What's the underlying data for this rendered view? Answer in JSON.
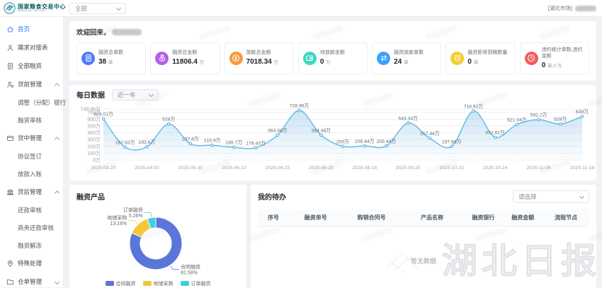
{
  "header": {
    "brand": {
      "title": "国家粮食交易中心",
      "subtitle": "National Grain Trade Center"
    },
    "market_filter": {
      "value": "全部"
    },
    "user": {
      "market_tag": "[湖北市场]"
    }
  },
  "sidebar": {
    "items": [
      {
        "id": "home",
        "label": "首页",
        "icon": "home-icon",
        "active": true
      },
      {
        "id": "demand-matching",
        "label": "需求对接表",
        "icon": "user-icon"
      },
      {
        "id": "all-financing",
        "label": "全部融资",
        "icon": "document-icon"
      },
      {
        "id": "pre-loan",
        "label": "贷前管理",
        "icon": "user-gear-icon",
        "expanded": true,
        "children": [
          "调整（分配）银行",
          "融资审核"
        ]
      },
      {
        "id": "mid-loan",
        "label": "贷中管理",
        "icon": "card-icon",
        "expanded": true,
        "children": [
          "协议签订",
          "放款入账"
        ]
      },
      {
        "id": "post-loan",
        "label": "贷后管理",
        "icon": "bank-icon",
        "expanded": true,
        "children": [
          "还款审核",
          "商务还款审核",
          "融资解冻"
        ]
      },
      {
        "id": "special",
        "label": "特殊处理",
        "icon": "pin-icon"
      },
      {
        "id": "warehouse",
        "label": "仓单管理",
        "icon": "folder-icon",
        "expanded": false,
        "children": []
      }
    ]
  },
  "main": {
    "welcome_prefix": "欢迎回来，",
    "stat_cards": [
      {
        "title": "融资总单数",
        "value": "38",
        "unit": "单",
        "icon": "document-icon",
        "color": "#4f79f6",
        "bg": "#e9efff"
      },
      {
        "title": "融资总金额",
        "value": "11806.4",
        "unit": "万",
        "icon": "money-bag-icon",
        "color": "#b45fe8",
        "bg": "#f6e9ff"
      },
      {
        "title": "放款总金额",
        "value": "7018.34",
        "unit": "万",
        "icon": "coin-icon",
        "color": "#f29a3e",
        "bg": "#fff1e2"
      },
      {
        "title": "待放款金额",
        "value": "0",
        "unit": "万",
        "icon": "wallet-icon",
        "color": "#3fd6c3",
        "bg": "#e2faf6"
      },
      {
        "title": "融资放款单数",
        "value": "24",
        "unit": "单",
        "icon": "transfer-icon",
        "color": "#3aa2ff",
        "bg": "#e3f2ff"
      },
      {
        "title": "融资即将到期数量",
        "value": "0",
        "unit": "单",
        "icon": "alarm-icon",
        "color": "#f5cd2f",
        "bg": "#fdf7dd"
      },
      {
        "title": "违约统计单数,违约金额",
        "value": "0",
        "unit": "单,0 万",
        "icon": "clock-icon",
        "color": "#f05c5c",
        "bg": "#fde6e6"
      }
    ],
    "daily_panel": {
      "title": "每日数据",
      "range_select": "近一年"
    },
    "product_panel": {
      "title": "融资产品"
    },
    "todo_panel": {
      "title": "我的待办",
      "filter_placeholder": "请选择",
      "columns": [
        "序号",
        "融资单号",
        "购销合同号",
        "产品名称",
        "融资银行",
        "融资金额",
        "流程节点"
      ],
      "empty_text": "暂无数据"
    }
  },
  "watermark": {
    "text": "湖北日报"
  },
  "chart_data": [
    {
      "type": "line",
      "title": "每日数据",
      "range": "近一年",
      "unit": "万",
      "values": [
        603.01,
        187.63,
        193.6,
        528,
        237.6,
        215.9,
        185.7,
        178.43,
        364.48,
        728.96,
        364.48,
        200,
        205.44,
        205.44,
        543.34,
        317.44,
        197.88,
        718.92,
        332.82,
        521.04,
        592.2,
        528,
        639
      ],
      "x_tick_labels": [
        "2025-03-20",
        "2025-04-02",
        "2025-05-30",
        "2025-06-13",
        "2025-06-23",
        "2025-06-25",
        "2025-08-18",
        "2025-09-25",
        "2025-10-22",
        "2025-10-24",
        "2025-11-06",
        "2025-11-18"
      ],
      "x_tick_every": 2,
      "ylim": [
        0,
        748.96
      ],
      "y_ticks": [
        0,
        100,
        200,
        300,
        400,
        500,
        600,
        700,
        748.96
      ],
      "line_color": "#62b7e6",
      "area": true,
      "grid": true,
      "smooth": true
    },
    {
      "type": "pie",
      "title": "融资产品",
      "donut": true,
      "slices": [
        {
          "name": "合同融资",
          "pct": 81.58,
          "color": "#5b76d9"
        },
        {
          "name": "地储采购",
          "pct": 13.16,
          "color": "#f3c73c"
        },
        {
          "name": "订单融资",
          "pct": 5.26,
          "color": "#3ed0e0"
        }
      ],
      "legend_position": "bottom"
    }
  ]
}
